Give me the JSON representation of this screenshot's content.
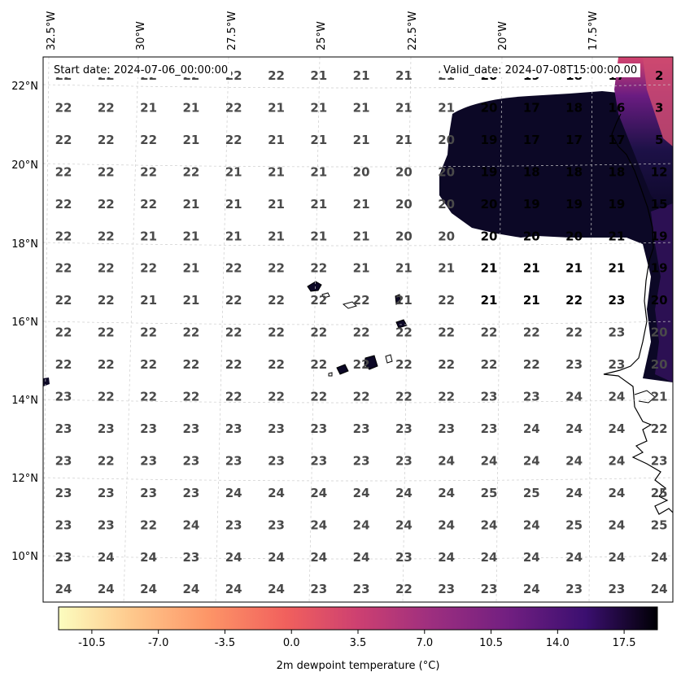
{
  "header": {
    "start_date": "Start date: 2024-07-06_00:00:00",
    "valid_date": "Valid_date: 2024-07-08T15:00:00.00"
  },
  "axes": {
    "lon_labels": [
      "32.5°W",
      "30°W",
      "27.5°W",
      "25°W",
      "22.5°W",
      "20°W",
      "17.5°W"
    ],
    "lat_labels": [
      "22°N",
      "20°N",
      "18°N",
      "16°N",
      "14°N",
      "12°N",
      "10°N"
    ]
  },
  "colorbar": {
    "label": "2m dewpoint temperature (°C)",
    "ticks": [
      "-10.5",
      "-7.0",
      "-3.5",
      "0.0",
      "3.5",
      "7.0",
      "10.5",
      "14.0",
      "17.5"
    ],
    "range": [
      -12.25,
      19.25
    ],
    "colormap": "magma_r"
  },
  "grid_values": [
    [
      "22",
      "22",
      "22",
      "22",
      "22",
      "22",
      "21",
      "21",
      "21",
      "21",
      "20",
      "19",
      "18",
      "17",
      "2"
    ],
    [
      "22",
      "22",
      "21",
      "21",
      "22",
      "21",
      "21",
      "21",
      "21",
      "21",
      "20",
      "17",
      "18",
      "16",
      "3"
    ],
    [
      "22",
      "22",
      "22",
      "21",
      "22",
      "21",
      "21",
      "21",
      "21",
      "20",
      "19",
      "17",
      "17",
      "17",
      "5"
    ],
    [
      "22",
      "22",
      "22",
      "22",
      "21",
      "21",
      "21",
      "20",
      "20",
      "20",
      "19",
      "18",
      "18",
      "18",
      "12"
    ],
    [
      "22",
      "22",
      "22",
      "21",
      "21",
      "21",
      "21",
      "21",
      "20",
      "20",
      "20",
      "19",
      "19",
      "19",
      "15"
    ],
    [
      "22",
      "22",
      "21",
      "21",
      "21",
      "21",
      "21",
      "21",
      "20",
      "20",
      "20",
      "20",
      "20",
      "21",
      "19"
    ],
    [
      "22",
      "22",
      "22",
      "21",
      "22",
      "22",
      "22",
      "21",
      "21",
      "21",
      "21",
      "21",
      "21",
      "21",
      "19"
    ],
    [
      "22",
      "22",
      "21",
      "21",
      "22",
      "22",
      "22",
      "22",
      "21",
      "22",
      "21",
      "21",
      "22",
      "23",
      "20"
    ],
    [
      "22",
      "22",
      "22",
      "22",
      "22",
      "22",
      "22",
      "22",
      "22",
      "22",
      "22",
      "22",
      "22",
      "23",
      "20"
    ],
    [
      "22",
      "22",
      "22",
      "22",
      "22",
      "22",
      "22",
      "22",
      "22",
      "22",
      "22",
      "22",
      "23",
      "23",
      "20"
    ],
    [
      "23",
      "22",
      "22",
      "22",
      "22",
      "22",
      "22",
      "22",
      "22",
      "22",
      "23",
      "23",
      "24",
      "24",
      "21"
    ],
    [
      "23",
      "23",
      "23",
      "23",
      "23",
      "23",
      "23",
      "23",
      "23",
      "23",
      "23",
      "24",
      "24",
      "24",
      "22"
    ],
    [
      "23",
      "22",
      "23",
      "23",
      "23",
      "23",
      "23",
      "23",
      "23",
      "24",
      "24",
      "24",
      "24",
      "24",
      "23"
    ],
    [
      "23",
      "23",
      "23",
      "23",
      "24",
      "24",
      "24",
      "24",
      "24",
      "24",
      "25",
      "25",
      "24",
      "24",
      "25"
    ],
    [
      "23",
      "23",
      "22",
      "24",
      "23",
      "23",
      "24",
      "24",
      "24",
      "24",
      "24",
      "24",
      "25",
      "24",
      "25"
    ],
    [
      "23",
      "24",
      "24",
      "23",
      "24",
      "24",
      "24",
      "24",
      "23",
      "24",
      "24",
      "24",
      "24",
      "24",
      "24"
    ],
    [
      "24",
      "24",
      "24",
      "24",
      "24",
      "24",
      "23",
      "23",
      "22",
      "23",
      "23",
      "24",
      "23",
      "23",
      "24"
    ]
  ]
}
